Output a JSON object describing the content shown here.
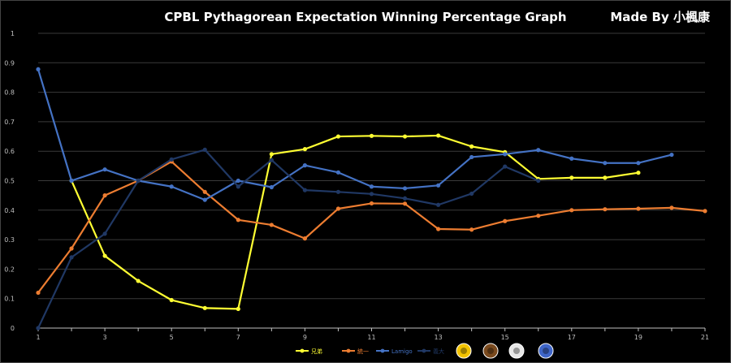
{
  "chart_data": {
    "type": "line",
    "title": "CPBL Pythagorean Expectation Winning Percentage Graph",
    "credit": "Made By 小楓康",
    "xlabel": "",
    "ylabel": "",
    "ylim": [
      0,
      1
    ],
    "yticks": [
      "0",
      "0.1",
      "0.2",
      "0.3",
      "0.4",
      "0.5",
      "0.6",
      "0.7",
      "0.8",
      "0.9",
      "1"
    ],
    "xlim": [
      1,
      21
    ],
    "xticks": [
      "1",
      "3",
      "5",
      "7",
      "9",
      "11",
      "13",
      "15",
      "17",
      "19",
      "21"
    ],
    "grid": true,
    "legend_position": "bottom",
    "series": [
      {
        "name": "兄弟",
        "color": "#FFFF33",
        "x": [
          2,
          3,
          4,
          5,
          6,
          7,
          8,
          9,
          10,
          11,
          12,
          13,
          14,
          15,
          16,
          17,
          18,
          19
        ],
        "values": [
          0.5,
          0.245,
          0.16,
          0.095,
          0.068,
          0.065,
          0.59,
          0.607,
          0.65,
          0.652,
          0.65,
          0.653,
          0.616,
          0.597,
          0.506,
          0.51,
          0.51,
          0.527
        ]
      },
      {
        "name": "統一",
        "color": "#ED7D31",
        "x": [
          1,
          2,
          3,
          4,
          5,
          6,
          7,
          8,
          9,
          10,
          11,
          12,
          13,
          14,
          15,
          16,
          17,
          18,
          19,
          20,
          21
        ],
        "values": [
          0.12,
          0.27,
          0.45,
          0.5,
          0.565,
          0.462,
          0.367,
          0.35,
          0.304,
          0.405,
          0.423,
          0.422,
          0.336,
          0.334,
          0.363,
          0.381,
          0.4,
          0.403,
          0.405,
          0.408,
          0.397
        ]
      },
      {
        "name": "Lamigo",
        "color": "#4472C4",
        "x": [
          1,
          2,
          3,
          4,
          5,
          6,
          7,
          8,
          9,
          10,
          11,
          12,
          13,
          14,
          15,
          16,
          17,
          18,
          19,
          20
        ],
        "values": [
          0.878,
          0.5,
          0.538,
          0.5,
          0.48,
          0.435,
          0.5,
          0.478,
          0.552,
          0.528,
          0.48,
          0.474,
          0.484,
          0.58,
          0.59,
          0.604,
          0.575,
          0.56,
          0.56,
          0.588
        ]
      },
      {
        "name": "義大",
        "color": "#203864",
        "x": [
          1,
          2,
          3,
          4,
          5,
          6,
          7,
          8,
          9,
          10,
          11,
          12,
          13,
          14,
          15,
          16
        ],
        "values": [
          0.0,
          0.24,
          0.32,
          0.5,
          0.572,
          0.605,
          0.48,
          0.57,
          0.468,
          0.462,
          0.455,
          0.44,
          0.418,
          0.456,
          0.548,
          0.5
        ]
      }
    ],
    "team_logos": [
      "team-logo-1",
      "team-logo-2",
      "team-logo-3",
      "team-logo-4"
    ]
  }
}
